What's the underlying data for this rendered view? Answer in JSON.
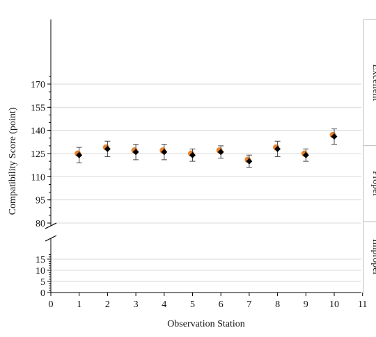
{
  "chart_data": {
    "type": "scatter",
    "xlabel": "Observation Station",
    "ylabel": "Compatibility Score (point)",
    "xlim": [
      0,
      11
    ],
    "x_ticks": [
      "0",
      "1",
      "2",
      "3",
      "4",
      "5",
      "6",
      "7",
      "8",
      "9",
      "10",
      "11"
    ],
    "y_axis_break": true,
    "y_lower_segment": {
      "range": [
        0,
        15
      ],
      "ticks": [
        "0",
        "5",
        "10",
        "15"
      ]
    },
    "y_upper_segment": {
      "range": [
        80,
        170
      ],
      "ticks": [
        "80",
        "95",
        "110",
        "125",
        "140",
        "155",
        "170"
      ]
    },
    "grid": {
      "horizontal": true,
      "vertical": false
    },
    "bands": [
      {
        "label": "Excellent",
        "range": [
          140,
          175
        ]
      },
      {
        "label": "Proper",
        "range": [
          80,
          140
        ]
      },
      {
        "label": "Improper",
        "range": [
          0,
          80
        ]
      }
    ],
    "series": [
      {
        "marker": "circle",
        "color": "#E8822C",
        "x": [
          1,
          2,
          3,
          4,
          5,
          6,
          7,
          8,
          9,
          10
        ],
        "y": [
          125,
          129,
          127,
          127,
          125,
          127,
          121,
          129,
          125,
          137
        ]
      },
      {
        "marker": "diamond",
        "color": "#000000",
        "x": [
          1,
          2,
          3,
          4,
          5,
          6,
          7,
          8,
          9,
          10
        ],
        "y": [
          124,
          128,
          126,
          126,
          124,
          126,
          120,
          128,
          124,
          136
        ],
        "error": [
          5,
          5,
          5,
          5,
          4,
          4,
          4,
          5,
          4,
          5
        ]
      }
    ]
  }
}
